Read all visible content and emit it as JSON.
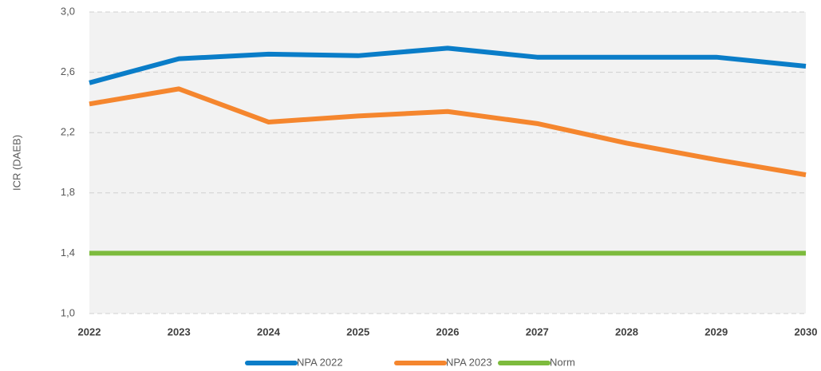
{
  "chart_data": {
    "type": "line",
    "y_label": "ICR (DAEB)",
    "categories": [
      "2022",
      "2023",
      "2024",
      "2025",
      "2026",
      "2027",
      "2028",
      "2029",
      "2030"
    ],
    "series": [
      {
        "name": "NPA 2022",
        "color": "#0a7dc8",
        "values": [
          2.53,
          2.69,
          2.72,
          2.71,
          2.76,
          2.7,
          2.7,
          2.7,
          2.64
        ]
      },
      {
        "name": "NPA 2023",
        "color": "#f5862e",
        "values": [
          2.39,
          2.49,
          2.27,
          2.31,
          2.34,
          2.26,
          2.13,
          2.02,
          1.92
        ]
      },
      {
        "name": "Norm",
        "color": "#7dbb3d",
        "values": [
          1.4,
          1.4,
          1.4,
          1.4,
          1.4,
          1.4,
          1.4,
          1.4,
          1.4
        ]
      }
    ],
    "ylim": [
      1.0,
      3.0
    ],
    "yticks": [
      {
        "value": 1.0,
        "label": "1,0"
      },
      {
        "value": 1.4,
        "label": "1,4"
      },
      {
        "value": 1.8,
        "label": "1,8"
      },
      {
        "value": 2.2,
        "label": "2,2"
      },
      {
        "value": 2.6,
        "label": "2,6"
      },
      {
        "value": 3.0,
        "label": "3,0"
      }
    ],
    "grid": true,
    "legend": "bottom"
  }
}
